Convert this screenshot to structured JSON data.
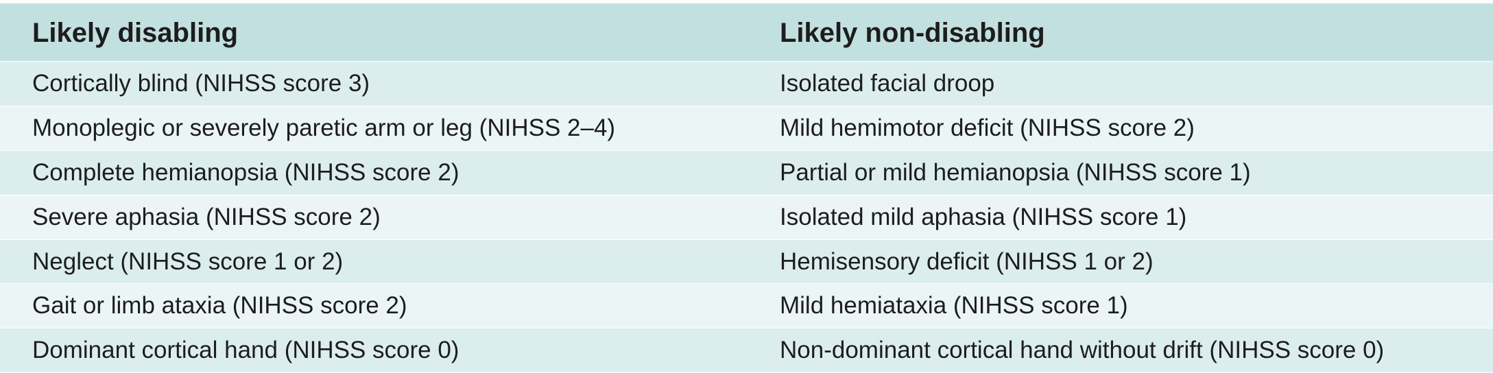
{
  "table": {
    "headers": [
      "Likely disabling",
      "Likely non-disabling"
    ],
    "rows": [
      [
        "Cortically blind (NIHSS score 3)",
        "Isolated facial droop"
      ],
      [
        "Monoplegic or severely paretic arm or leg (NIHSS 2–4)",
        "Mild hemimotor deficit (NIHSS score 2)"
      ],
      [
        "Complete hemianopsia (NIHSS score 2)",
        "Partial or mild hemianopsia (NIHSS score 1)"
      ],
      [
        "Severe aphasia (NIHSS score 2)",
        "Isolated mild aphasia (NIHSS score 1)"
      ],
      [
        "Neglect (NIHSS score 1 or 2)",
        "Hemisensory deficit (NIHSS 1 or 2)"
      ],
      [
        "Gait or limb ataxia (NIHSS score 2)",
        "Mild hemiataxia (NIHSS score 1)"
      ],
      [
        "Dominant cortical hand (NIHSS score 0)",
        "Non-dominant cortical hand without drift (NIHSS score 0)"
      ]
    ]
  },
  "colors": {
    "header_bg": "#c3e0e1",
    "row_odd_bg": "#dcedee",
    "row_even_bg": "#ecf5f5",
    "text": "#1d1d1d"
  }
}
